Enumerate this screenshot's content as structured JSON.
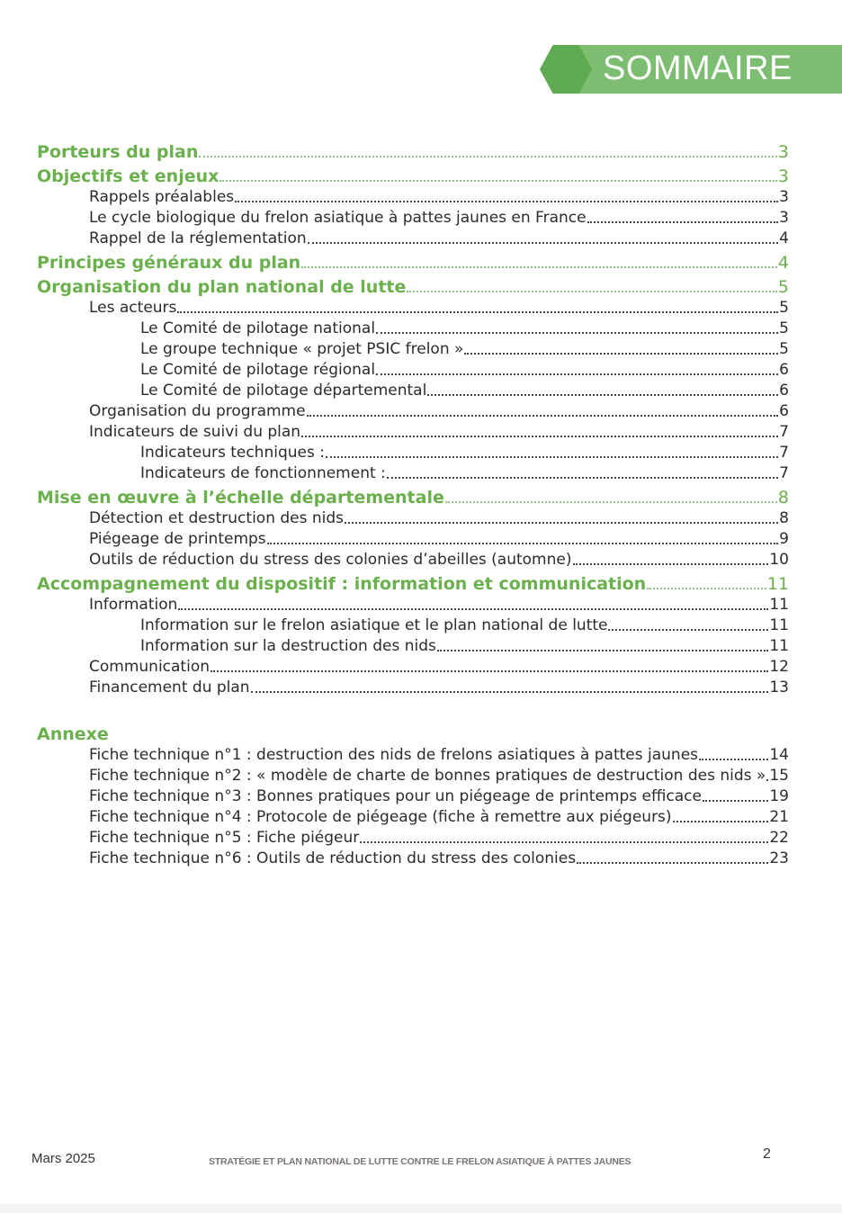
{
  "header": {
    "title": "SOMMAIRE",
    "accent_color": "#7dbd72",
    "hex_color": "#5fab51"
  },
  "toc": [
    {
      "level": 1,
      "label": "Porteurs du plan",
      "page": "3"
    },
    {
      "level": 1,
      "label": "Objectifs et enjeux",
      "page": "3"
    },
    {
      "level": 2,
      "label": "Rappels préalables",
      "page": "3"
    },
    {
      "level": 2,
      "label": "Le cycle biologique du frelon asiatique à pattes jaunes en France",
      "page": "3"
    },
    {
      "level": 2,
      "label": "Rappel de la réglementation",
      "page": "4"
    },
    {
      "level": 1,
      "label": "Principes généraux du plan",
      "page": "4"
    },
    {
      "level": 1,
      "label": "Organisation du plan national de lutte",
      "page": "5"
    },
    {
      "level": 2,
      "label": "Les acteurs",
      "page": "5"
    },
    {
      "level": 3,
      "label": "Le Comité de pilotage national",
      "page": "5"
    },
    {
      "level": 3,
      "label": "Le groupe technique « projet PSIC frelon »",
      "page": "5"
    },
    {
      "level": 3,
      "label": "Le Comité de pilotage régional",
      "page": "6"
    },
    {
      "level": 3,
      "label": "Le Comité de pilotage départemental",
      "page": "6"
    },
    {
      "level": 2,
      "label": "Organisation du programme",
      "page": "6"
    },
    {
      "level": 2,
      "label": "Indicateurs de suivi du plan",
      "page": "7"
    },
    {
      "level": 3,
      "label": "Indicateurs techniques :",
      "page": "7"
    },
    {
      "level": 3,
      "label": "Indicateurs de fonctionnement :",
      "page": "7"
    },
    {
      "level": 1,
      "label": "Mise en œuvre à l’échelle départementale",
      "page": "8"
    },
    {
      "level": 2,
      "label": "Détection et destruction des nids",
      "page": "8"
    },
    {
      "level": 2,
      "label": "Piégeage de printemps",
      "page": "9"
    },
    {
      "level": 2,
      "label": "Outils de réduction du stress des colonies d’abeilles (automne)",
      "page": "10"
    },
    {
      "level": 1,
      "label": "Accompagnement du dispositif : information et communication",
      "page": "11"
    },
    {
      "level": 2,
      "label": "Information",
      "page": "11"
    },
    {
      "level": 3,
      "label": "Information sur le frelon asiatique et le plan national de lutte",
      "page": "11"
    },
    {
      "level": 3,
      "label": "Information sur la destruction des nids",
      "page": "11"
    },
    {
      "level": 2,
      "label": "Communication",
      "page": "12"
    },
    {
      "level": 2,
      "label": "Financement du plan",
      "page": "13"
    },
    {
      "level": 1,
      "label": "Annexe",
      "page": "",
      "annexe": true
    },
    {
      "level": 2,
      "label": "Fiche technique n°1 : destruction des nids de frelons asiatiques à pattes jaunes",
      "page": "14"
    },
    {
      "level": 2,
      "label": "Fiche technique n°2 : « modèle de charte de bonnes pratiques de destruction des nids »",
      "page": "15"
    },
    {
      "level": 2,
      "label": "Fiche technique n°3 : Bonnes pratiques pour un piégeage de printemps efficace",
      "page": "19"
    },
    {
      "level": 2,
      "label": "Fiche technique n°4 : Protocole de piégeage (fiche à remettre aux piégeurs)",
      "page": "21"
    },
    {
      "level": 2,
      "label": "Fiche technique n°5 : Fiche piégeur",
      "page": "22"
    },
    {
      "level": 2,
      "label": "Fiche technique n°6 : Outils de réduction du stress des colonies",
      "page": "23"
    }
  ],
  "footer": {
    "date": "Mars 2025",
    "title": "STRATÉGIE ET PLAN NATIONAL DE LUTTE CONTRE LE FRELON ASIATIQUE À PATTES JAUNES",
    "page_number": "2"
  }
}
